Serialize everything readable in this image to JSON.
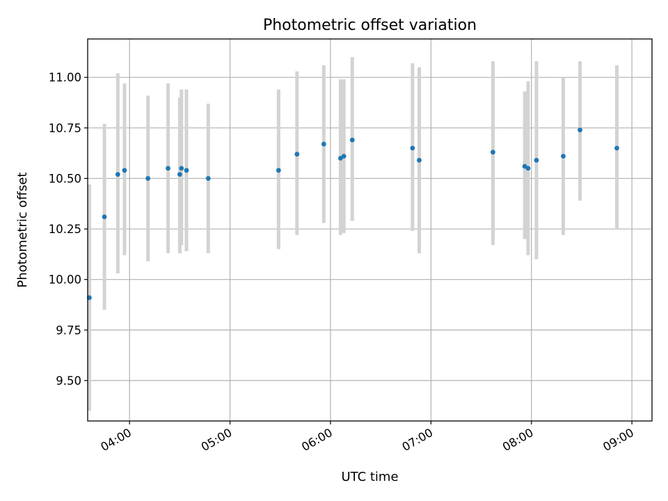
{
  "chart_data": {
    "type": "scatter",
    "title": "Photometric offset variation",
    "xlabel": "UTC time",
    "ylabel": "Photometric offset",
    "x_axis_type": "time",
    "xlim": [
      "03:35",
      "09:12"
    ],
    "ylim": [
      9.3,
      11.19
    ],
    "grid": true,
    "legend": "none",
    "x_ticks": [
      "04:00",
      "05:00",
      "06:00",
      "07:00",
      "08:00",
      "09:00"
    ],
    "y_ticks": [
      "9.50",
      "9.75",
      "10.00",
      "10.25",
      "10.50",
      "10.75",
      "11.00"
    ],
    "colors": {
      "point": "#1f77b4",
      "errorbar": "#d3d3d3",
      "grid": "#b0b0b0"
    },
    "series": [
      {
        "points": [
          {
            "x": "03:36",
            "y": 9.91,
            "err_low": 9.35,
            "err_high": 10.47
          },
          {
            "x": "03:45",
            "y": 10.31,
            "err_low": 9.85,
            "err_high": 10.77
          },
          {
            "x": "03:53",
            "y": 10.52,
            "err_low": 10.03,
            "err_high": 11.02
          },
          {
            "x": "03:57",
            "y": 10.54,
            "err_low": 10.12,
            "err_high": 10.97
          },
          {
            "x": "04:11",
            "y": 10.5,
            "err_low": 10.09,
            "err_high": 10.91
          },
          {
            "x": "04:23",
            "y": 10.55,
            "err_low": 10.13,
            "err_high": 10.97
          },
          {
            "x": "04:30",
            "y": 10.52,
            "err_low": 10.13,
            "err_high": 10.9
          },
          {
            "x": "04:31",
            "y": 10.55,
            "err_low": 10.17,
            "err_high": 10.94
          },
          {
            "x": "04:34",
            "y": 10.54,
            "err_low": 10.14,
            "err_high": 10.94
          },
          {
            "x": "04:47",
            "y": 10.5,
            "err_low": 10.13,
            "err_high": 10.87
          },
          {
            "x": "05:29",
            "y": 10.54,
            "err_low": 10.15,
            "err_high": 10.94
          },
          {
            "x": "05:40",
            "y": 10.62,
            "err_low": 10.22,
            "err_high": 11.03
          },
          {
            "x": "05:56",
            "y": 10.67,
            "err_low": 10.28,
            "err_high": 11.06
          },
          {
            "x": "06:06",
            "y": 10.6,
            "err_low": 10.22,
            "err_high": 10.99
          },
          {
            "x": "06:08",
            "y": 10.61,
            "err_low": 10.23,
            "err_high": 10.99
          },
          {
            "x": "06:13",
            "y": 10.69,
            "err_low": 10.29,
            "err_high": 11.1
          },
          {
            "x": "06:49",
            "y": 10.65,
            "err_low": 10.24,
            "err_high": 11.07
          },
          {
            "x": "06:53",
            "y": 10.59,
            "err_low": 10.13,
            "err_high": 11.05
          },
          {
            "x": "07:37",
            "y": 10.63,
            "err_low": 10.17,
            "err_high": 11.08
          },
          {
            "x": "07:56",
            "y": 10.56,
            "err_low": 10.2,
            "err_high": 10.93
          },
          {
            "x": "07:58",
            "y": 10.55,
            "err_low": 10.12,
            "err_high": 10.98
          },
          {
            "x": "08:03",
            "y": 10.59,
            "err_low": 10.1,
            "err_high": 11.08
          },
          {
            "x": "08:19",
            "y": 10.61,
            "err_low": 10.22,
            "err_high": 11.0
          },
          {
            "x": "08:29",
            "y": 10.74,
            "err_low": 10.39,
            "err_high": 11.08
          },
          {
            "x": "08:51",
            "y": 10.65,
            "err_low": 10.25,
            "err_high": 11.06
          }
        ]
      }
    ]
  }
}
